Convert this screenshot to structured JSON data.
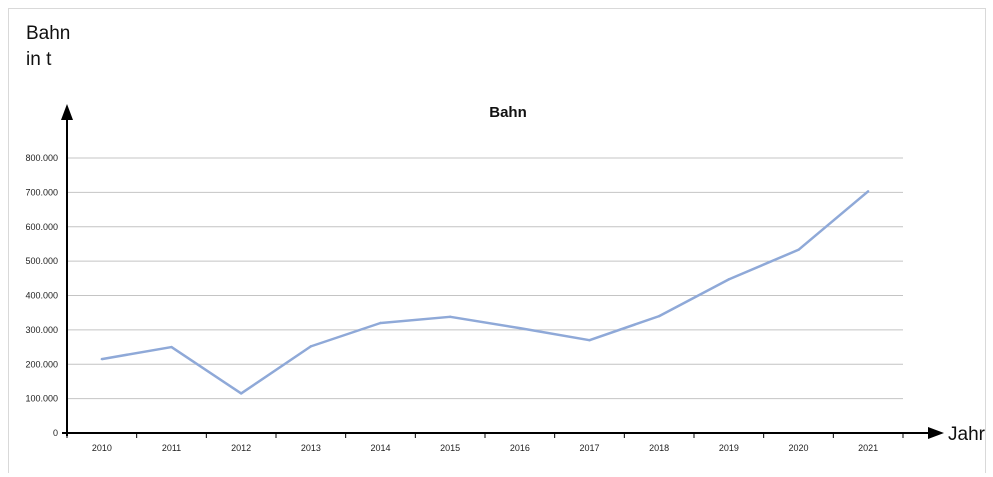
{
  "chart_data": {
    "type": "line",
    "title": "Bahn",
    "ylabel_line1": "Bahn",
    "ylabel_line2": "in t",
    "xlabel": "Jahr",
    "categories": [
      "2010",
      "2011",
      "2012",
      "2013",
      "2014",
      "2015",
      "2016",
      "2017",
      "2018",
      "2019",
      "2020",
      "2021"
    ],
    "series": [
      {
        "values": [
          215000,
          250000,
          115000,
          252000,
          320000,
          338000,
          305000,
          270000,
          340000,
          447000,
          533000,
          703000
        ]
      }
    ],
    "ylim": [
      0,
      800000
    ],
    "yticks": [
      {
        "value": 0,
        "label": "0"
      },
      {
        "value": 100000,
        "label": "100.000"
      },
      {
        "value": 200000,
        "label": "200.000"
      },
      {
        "value": 300000,
        "label": "300.000"
      },
      {
        "value": 400000,
        "label": "400.000"
      },
      {
        "value": 500000,
        "label": "500.000"
      },
      {
        "value": 600000,
        "label": "600.000"
      },
      {
        "value": 700000,
        "label": "700.000"
      },
      {
        "value": 800000,
        "label": "800.000"
      }
    ],
    "grid": true,
    "line_color": "#8fa9d8"
  }
}
